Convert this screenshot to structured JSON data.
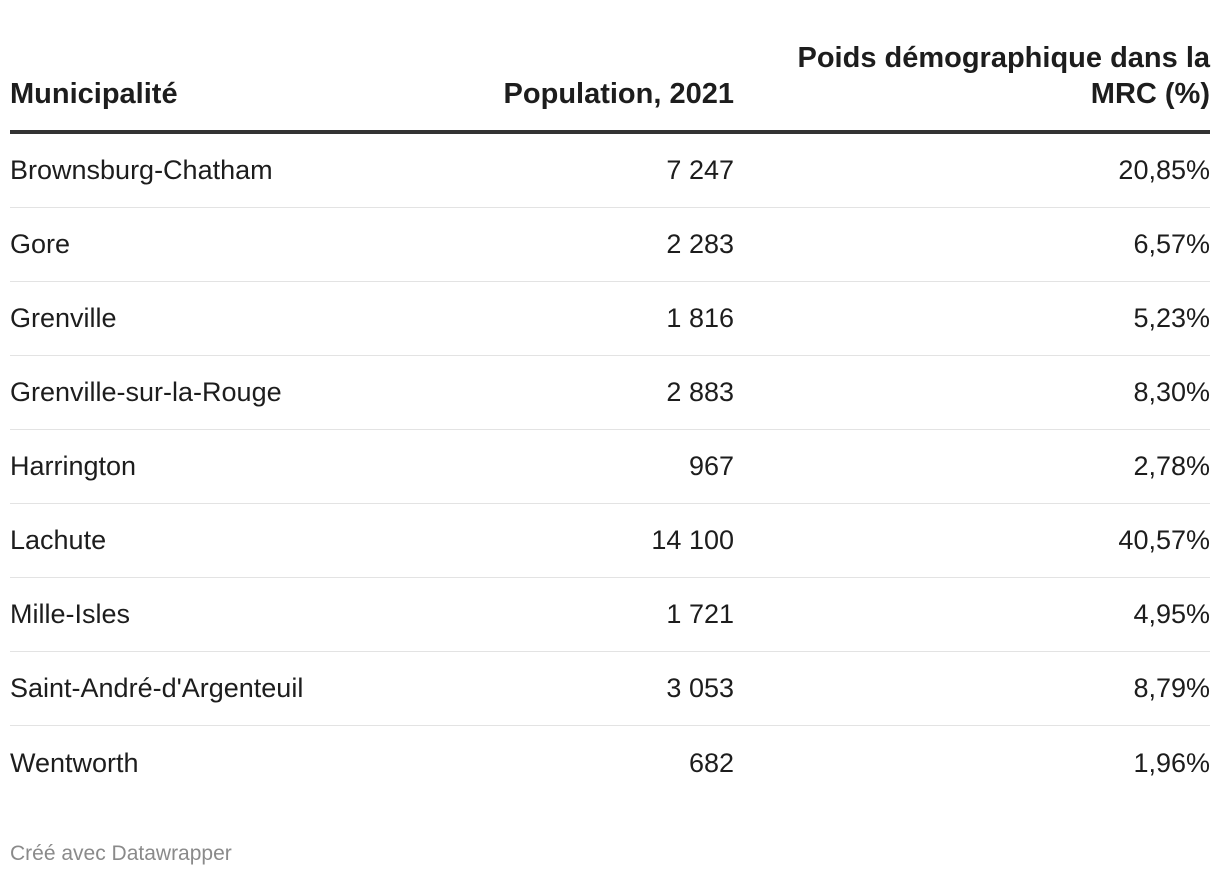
{
  "chart_data": {
    "type": "table",
    "columns": [
      "Municipalité",
      "Population, 2021",
      "Poids démographique dans la MRC (%)"
    ],
    "rows": [
      {
        "municipalite": "Brownsburg-Chatham",
        "population": "7 247",
        "poids": "20,85%"
      },
      {
        "municipalite": "Gore",
        "population": "2 283",
        "poids": "6,57%"
      },
      {
        "municipalite": "Grenville",
        "population": "1 816",
        "poids": "5,23%"
      },
      {
        "municipalite": "Grenville-sur-la-Rouge",
        "population": "2 883",
        "poids": "8,30%"
      },
      {
        "municipalite": "Harrington",
        "population": "967",
        "poids": "2,78%"
      },
      {
        "municipalite": "Lachute",
        "population": "14 100",
        "poids": "40,57%"
      },
      {
        "municipalite": "Mille-Isles",
        "population": "1 721",
        "poids": "4,95%"
      },
      {
        "municipalite": "Saint-André-d'Argenteuil",
        "population": "3 053",
        "poids": "8,79%"
      },
      {
        "municipalite": "Wentworth",
        "population": "682",
        "poids": "1,96%"
      }
    ]
  },
  "footer": "Créé avec Datawrapper"
}
